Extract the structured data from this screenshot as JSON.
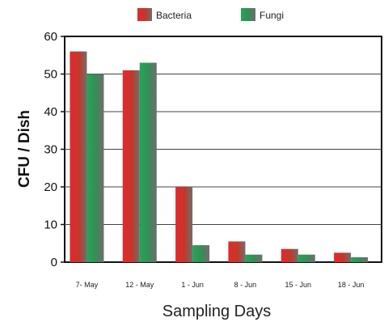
{
  "chart_data": {
    "type": "bar",
    "categories": [
      "7- May",
      "12 - May",
      "1 - Jun",
      "8 - Jun",
      "15 - Jun",
      "18 - Jun"
    ],
    "series": [
      {
        "name": "Bacteria",
        "values": [
          56,
          51,
          20,
          5.5,
          3.5,
          2.5
        ],
        "color": "#d8262d"
      },
      {
        "name": "Fungi",
        "values": [
          50,
          53,
          4.5,
          2,
          2,
          1.3
        ],
        "color": "#2a9d4f"
      }
    ],
    "title": "",
    "xlabel": "Sampling Days",
    "ylabel": "CFU / Dish",
    "ylim": [
      0,
      60
    ],
    "yticks": [
      0,
      10,
      20,
      30,
      40,
      50,
      60
    ],
    "grid": true,
    "legend_position": "top-center"
  }
}
